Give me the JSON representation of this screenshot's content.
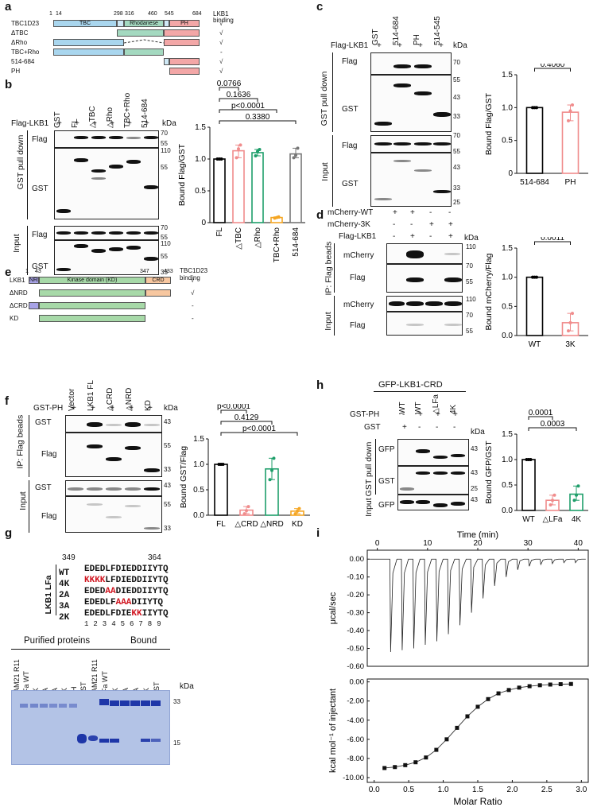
{
  "figure": {
    "panel_letters": [
      "a",
      "b",
      "c",
      "d",
      "e",
      "f",
      "g",
      "h",
      "i"
    ]
  },
  "panel_a": {
    "rows": [
      "TBC1D23",
      "ΔTBC",
      "ΔRho",
      "TBC+Rho",
      "514-684",
      "PH"
    ],
    "positions": [
      "1",
      "14",
      "298",
      "316",
      "460",
      "545",
      "684"
    ],
    "domain_labels": [
      "TBC",
      "Rhodanese",
      "PH"
    ],
    "binding_header": [
      "LKB1",
      "binding"
    ],
    "binding": [
      "√",
      "√",
      "√",
      "-",
      "√",
      "√"
    ]
  },
  "panel_b": {
    "lane_labels": [
      "GST",
      "FL",
      "△TBC",
      "△Rho",
      "TBC+Rho",
      "514-684"
    ],
    "flag_row_label": "Flag-LKB1",
    "flag_signs": [
      "+",
      "+",
      "+",
      "+",
      "+",
      "+"
    ],
    "group_labels": [
      "GST pull down",
      "Input"
    ],
    "blot_labels": [
      "Flag",
      "GST",
      "Flag",
      "GST"
    ],
    "kda": "kDa",
    "mw_pulldown": [
      "70",
      "55",
      "110",
      "55"
    ],
    "mw_input": [
      "70",
      "55",
      "110",
      "55",
      "33"
    ]
  },
  "panel_c": {
    "lane_labels": [
      "GST",
      "514-684",
      "PH",
      "514-545"
    ],
    "flag_row_label": "Flag-LKB1",
    "flag_signs": [
      "+",
      "+",
      "+",
      "+"
    ],
    "group_labels": [
      "GST pull down",
      "Input"
    ],
    "blot_labels": [
      "Flag",
      "GST",
      "Flag",
      "GST"
    ],
    "kda": "kDa",
    "mw_pulldown": [
      "70",
      "55",
      "43",
      "33"
    ],
    "mw_input": [
      "70",
      "55",
      "43",
      "33",
      "25"
    ]
  },
  "panel_d": {
    "rows": [
      {
        "label": "mCherry-WT",
        "signs": [
          "+",
          "+",
          "-",
          "-"
        ]
      },
      {
        "label": "mCherry-3K",
        "signs": [
          "-",
          "-",
          "+",
          "+"
        ]
      },
      {
        "label": "Flag-LKB1",
        "signs": [
          "-",
          "+",
          "-",
          "+"
        ]
      }
    ],
    "group_labels": [
      "IP: Flag beads",
      "Input"
    ],
    "blot_labels": [
      "mCherry",
      "Flag",
      "mCherry",
      "Flag"
    ],
    "kda": "kDa",
    "mw": [
      "110",
      "70",
      "55",
      "110",
      "70",
      "55"
    ]
  },
  "panel_e": {
    "rows": [
      "LKB1",
      "ΔNRD",
      "ΔCRD",
      "KD"
    ],
    "positions": [
      "1",
      "43",
      "347",
      "433"
    ],
    "domain_labels": [
      "NRD",
      "Kinase domain (KD)",
      "CRD"
    ],
    "binding_header": [
      "TBC1D23",
      "binding"
    ],
    "binding": [
      "√",
      "√",
      "-",
      "-"
    ]
  },
  "panel_f": {
    "lane_labels": [
      "Vector",
      "LKB1 FL",
      "△CRD",
      "△NRD",
      "KD"
    ],
    "gst_row_label": "GST-PH",
    "gst_signs": [
      "+",
      "+",
      "+",
      "+",
      "+"
    ],
    "group_labels": [
      "IP: Flag beads",
      "Input"
    ],
    "blot_labels": [
      "GST",
      "Flag",
      "GST",
      "Flag"
    ],
    "kda": "kDa",
    "mw_ip": [
      "43",
      "55",
      "33"
    ],
    "mw_input": [
      "43",
      "55",
      "33"
    ]
  },
  "panel_g": {
    "start_pos": "349",
    "end_pos": "364",
    "group_label": "LKB1 LFa",
    "sequences": [
      {
        "name": "WT",
        "pre": "",
        "mut": "",
        "post": "EDEDLFDIEDDIIYTQ"
      },
      {
        "name": "4K",
        "pre": "",
        "mut": "KKKK",
        "post": "LFDIEDDIIYTQ"
      },
      {
        "name": "2A",
        "pre": "EDED",
        "mut": "AA",
        "post": "DIEDDIIYTQ"
      },
      {
        "name": "3A",
        "pre": "EDEDLF",
        "mut": "AAA",
        "post": "DIIYTQ"
      },
      {
        "name": "2K",
        "pre": "EDEDLFDIE",
        "mut": "KK",
        "post": "IIYTQ"
      }
    ],
    "numbering": "1 2 3 4 5 6 7 8 9",
    "gel_headers": [
      "Purified proteins",
      "Bound"
    ],
    "lanes_purified": [
      "FAM21 R11",
      "LFa WT",
      "4K",
      "2A",
      "3A",
      "2K",
      "PH",
      "GST"
    ],
    "lanes_bound": [
      "FAM21 R11",
      "LFa WT",
      "4K",
      "2A",
      "3A",
      "2K",
      "GST"
    ],
    "kda": "kDa",
    "mw": [
      "33",
      "15"
    ]
  },
  "panel_h": {
    "title": "GFP-LKB1-CRD",
    "lane_labels": [
      "WT",
      "WT",
      "△LFa",
      "4K"
    ],
    "rows": [
      {
        "label": "GST-PH",
        "signs": [
          "-",
          "+",
          "+",
          "+"
        ]
      },
      {
        "label": "GST",
        "signs": [
          "+",
          "-",
          "-",
          "-"
        ]
      }
    ],
    "group_labels": [
      "GST pull down",
      "Input"
    ],
    "blot_labels": [
      "GFP",
      "GST",
      "GFP"
    ],
    "kda": "kDa",
    "mw": [
      "43",
      "43",
      "25",
      "43"
    ]
  },
  "charts": {
    "chart_data": [
      {
        "id": "b",
        "type": "bar",
        "categories": [
          "FL",
          "△TBC",
          "△Rho",
          "TBC+Rho",
          "514-684"
        ],
        "values": [
          1.0,
          1.13,
          1.1,
          0.08,
          1.08
        ],
        "points": [
          [
            1.0,
            1.0,
            1.0
          ],
          [
            1.02,
            1.16,
            1.22
          ],
          [
            1.05,
            1.12,
            1.15
          ],
          [
            0.07,
            0.08,
            0.09
          ],
          [
            1.02,
            1.06,
            1.17
          ]
        ],
        "colors": [
          "#000000",
          "#f08c8c",
          "#1e9e6a",
          "#f5a623",
          "#777777"
        ],
        "ylabel": "Bound Flag/GST",
        "ylim": [
          0,
          1.5
        ],
        "yticks": [
          "0",
          "0.5",
          "1.0",
          "1.5"
        ],
        "grid": false,
        "comparisons": [
          {
            "label": "0.0766",
            "from": 0,
            "to": 1
          },
          {
            "label": "0.1636",
            "from": 0,
            "to": 2
          },
          {
            "label": "p<0.0001",
            "from": 0,
            "to": 3
          },
          {
            "label": "0.3380",
            "from": 0,
            "to": 4
          }
        ]
      },
      {
        "id": "c",
        "type": "bar",
        "categories": [
          "514-684",
          "PH"
        ],
        "values": [
          1.0,
          0.93
        ],
        "points": [
          [
            1.0,
            1.0,
            1.0
          ],
          [
            0.8,
            0.95,
            1.04
          ]
        ],
        "colors": [
          "#000000",
          "#f08c8c"
        ],
        "ylabel": "Bound Flag/GST",
        "ylim": [
          0,
          1.5
        ],
        "yticks": [
          "0",
          "0.5",
          "1.0",
          "1.5"
        ],
        "grid": false,
        "comparisons": [
          {
            "label": "0.4060",
            "from": 0,
            "to": 1
          }
        ]
      },
      {
        "id": "d",
        "type": "bar",
        "categories": [
          "WT",
          "3K"
        ],
        "values": [
          1.0,
          0.22
        ],
        "points": [
          [
            1.0,
            1.0,
            1.0
          ],
          [
            0.08,
            0.22,
            0.38
          ]
        ],
        "colors": [
          "#000000",
          "#f08c8c"
        ],
        "ylabel": "Bound mCherry/Flag",
        "ylim": [
          0,
          1.5
        ],
        "yticks": [
          "0.0",
          "0.5",
          "1.0",
          "1.5"
        ],
        "grid": false,
        "comparisons": [
          {
            "label": "0.0011",
            "from": 0,
            "to": 1
          }
        ]
      },
      {
        "id": "f",
        "type": "bar",
        "categories": [
          "FL",
          "△CRD",
          "△NRD",
          "KD"
        ],
        "values": [
          1.0,
          0.1,
          0.91,
          0.08
        ],
        "points": [
          [
            1.0,
            1.0,
            1.0
          ],
          [
            0.03,
            0.09,
            0.17
          ],
          [
            0.7,
            0.88,
            1.12
          ],
          [
            0.03,
            0.08,
            0.13
          ]
        ],
        "colors": [
          "#000000",
          "#f08c8c",
          "#1e9e6a",
          "#f5a623"
        ],
        "ylabel": "Bound GST/Flag",
        "ylim": [
          0,
          1.5
        ],
        "yticks": [
          "0.0",
          "0.5",
          "1.0",
          "1.5"
        ],
        "grid": false,
        "comparisons": [
          {
            "label": "p<0.0001",
            "from": 0,
            "to": 1
          },
          {
            "label": "0.4129",
            "from": 0,
            "to": 2
          },
          {
            "label": "p<0.0001",
            "from": 0,
            "to": 3
          }
        ]
      },
      {
        "id": "h",
        "type": "bar",
        "categories": [
          "WT",
          "△LFa",
          "4K"
        ],
        "values": [
          1.0,
          0.2,
          0.32
        ],
        "points": [
          [
            1.0,
            1.0,
            1.0
          ],
          [
            0.11,
            0.2,
            0.3
          ],
          [
            0.2,
            0.3,
            0.48
          ]
        ],
        "colors": [
          "#000000",
          "#f08c8c",
          "#1e9e6a"
        ],
        "ylabel": "Bound GFP/GST",
        "ylim": [
          0,
          1.5
        ],
        "yticks": [
          "0.0",
          "0.5",
          "1.0",
          "1.5"
        ],
        "grid": false,
        "comparisons": [
          {
            "label": "0.0001",
            "from": 0,
            "to": 1
          },
          {
            "label": "0.0003",
            "from": 0,
            "to": 2
          }
        ]
      },
      {
        "id": "i_top",
        "type": "line",
        "title": "",
        "xlabel": "Time (min)",
        "ylabel": "μcal/sec",
        "xlim": [
          -2,
          42
        ],
        "ylim": [
          -0.6,
          0.05
        ],
        "xticks": [
          "0",
          "10",
          "20",
          "30",
          "40"
        ],
        "yticks": [
          "0.00",
          "-0.10",
          "-0.20",
          "-0.30",
          "-0.40",
          "-0.50",
          "-0.60"
        ],
        "injection_times": [
          2.5,
          4.8,
          7.1,
          9.4,
          11.7,
          14.0,
          16.3,
          18.6,
          20.9,
          23.2,
          25.5,
          27.8,
          30.1,
          32.4,
          34.7,
          37.0,
          39.3
        ],
        "peak_values": [
          -0.52,
          -0.51,
          -0.5,
          -0.48,
          -0.46,
          -0.42,
          -0.37,
          -0.3,
          -0.22,
          -0.15,
          -0.1,
          -0.06,
          -0.04,
          -0.03,
          -0.025,
          -0.02,
          -0.02
        ]
      },
      {
        "id": "i_bottom",
        "type": "scatter",
        "xlabel": "Molar Ratio",
        "ylabel": "kcal mol⁻¹ of injectant",
        "xlim": [
          -0.1,
          3.1
        ],
        "ylim": [
          -10.5,
          0.3
        ],
        "xticks": [
          "0.0",
          "0.5",
          "1.0",
          "1.5",
          "2.0",
          "2.5",
          "3.0"
        ],
        "yticks": [
          "0.00",
          "-2.00",
          "-4.00",
          "-6.00",
          "-8.00",
          "-10.00"
        ],
        "x": [
          0.15,
          0.3,
          0.45,
          0.6,
          0.75,
          0.9,
          1.05,
          1.2,
          1.35,
          1.5,
          1.65,
          1.8,
          1.95,
          2.1,
          2.25,
          2.4,
          2.55,
          2.7,
          2.85
        ],
        "y": [
          -9.0,
          -8.9,
          -8.7,
          -8.4,
          -7.9,
          -7.1,
          -6.0,
          -4.8,
          -3.6,
          -2.6,
          -1.8,
          -1.2,
          -0.85,
          -0.6,
          -0.45,
          -0.35,
          -0.28,
          -0.24,
          -0.22
        ]
      }
    ]
  }
}
